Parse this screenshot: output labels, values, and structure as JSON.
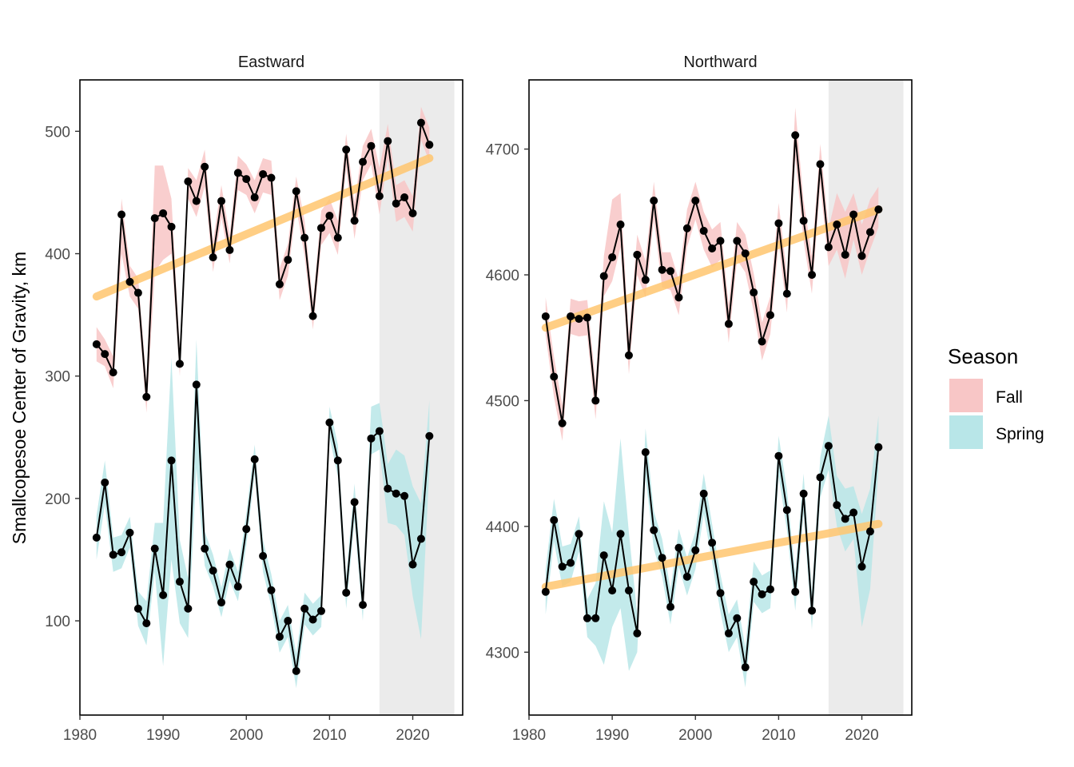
{
  "chart_data": {
    "type": "line",
    "ylabel": "Smallcopesoe Center of Gravity, km",
    "legend": {
      "title": "Season",
      "placement": "right",
      "items": [
        {
          "name": "Fall",
          "color": "#f8c6c6"
        },
        {
          "name": "Spring",
          "color": "#b8e6e8"
        }
      ]
    },
    "colors": {
      "trend": "#ffc56e",
      "shade": "#ebebeb",
      "points": "#000000"
    },
    "shaded_period": [
      2016,
      2025
    ],
    "panels": [
      {
        "title": "Eastward",
        "xlim": [
          1980,
          2026
        ],
        "ylim": [
          23,
          542
        ],
        "xticks": [
          1980,
          1990,
          2000,
          2010,
          2020
        ],
        "yticks": [
          100,
          200,
          300,
          400,
          500
        ],
        "series": [
          {
            "name": "Fall",
            "x": [
              1982,
              1983,
              1984,
              1985,
              1986,
              1987,
              1988,
              1989,
              1990,
              1991,
              1992,
              1993,
              1994,
              1995,
              1996,
              1997,
              1998,
              1999,
              2000,
              2001,
              2002,
              2003,
              2004,
              2005,
              2006,
              2007,
              2008,
              2009,
              2010,
              2011,
              2012,
              2013,
              2014,
              2015,
              2016,
              2017,
              2018,
              2019,
              2020,
              2021,
              2022
            ],
            "y": [
              326,
              318,
              303,
              432,
              377,
              368,
              283,
              429,
              433,
              422,
              310,
              459,
              443,
              471,
              397,
              443,
              403,
              466,
              461,
              446,
              465,
              462,
              375,
              395,
              451,
              413,
              349,
              421,
              431,
              413,
              485,
              427,
              475,
              488,
              447,
              492,
              441,
              446,
              433,
              507,
              489
            ],
            "lower": [
              312,
              308,
              290,
              400,
              365,
              355,
              270,
              385,
              395,
              400,
              300,
              445,
              430,
              455,
              385,
              430,
              392,
              452,
              448,
              433,
              450,
              448,
              362,
              382,
              438,
              398,
              338,
              407,
              417,
              399,
              470,
              412,
              460,
              473,
              432,
              478,
              426,
              430,
              418,
              493,
              475
            ],
            "upper": [
              340,
              330,
              316,
              445,
              390,
              380,
              296,
              472,
              472,
              445,
              322,
              470,
              460,
              485,
              410,
              456,
              415,
              480,
              473,
              460,
              478,
              476,
              388,
              408,
              463,
              427,
              360,
              435,
              445,
              427,
              498,
              442,
              488,
              502,
              470,
              506,
              456,
              460,
              447,
              520,
              503
            ],
            "trend": [
              [
                1982,
                365
              ],
              [
                2022,
                478
              ]
            ]
          },
          {
            "name": "Spring",
            "x": [
              1982,
              1983,
              1984,
              1985,
              1986,
              1987,
              1988,
              1989,
              1990,
              1991,
              1992,
              1993,
              1994,
              1995,
              1996,
              1997,
              1998,
              1999,
              2000,
              2001,
              2002,
              2003,
              2004,
              2005,
              2006,
              2007,
              2008,
              2009,
              2010,
              2011,
              2012,
              2013,
              2014,
              2015,
              2016,
              2017,
              2018,
              2019,
              2020,
              2021,
              2022
            ],
            "y": [
              168,
              213,
              154,
              156,
              172,
              110,
              98,
              159,
              121,
              231,
              132,
              110,
              293,
              159,
              141,
              115,
              146,
              128,
              175,
              232,
              153,
              125,
              87,
              100,
              59,
              110,
              101,
              108,
              262,
              231,
              123,
              197,
              113,
              249,
              255,
              208,
              204,
              202,
              146,
              167,
              251
            ],
            "lower": [
              150,
              195,
              140,
              143,
              160,
              96,
              80,
              140,
              63,
              150,
              98,
              86,
              225,
              145,
              128,
              103,
              133,
              116,
              162,
              220,
              140,
              112,
              74,
              87,
              45,
              97,
              88,
              95,
              250,
              218,
              110,
              182,
              100,
              236,
              240,
              180,
              178,
              170,
              120,
              85,
              225
            ],
            "upper": [
              186,
              231,
              168,
              170,
              185,
              124,
              116,
              180,
              180,
              315,
              166,
              135,
              330,
              173,
              154,
              127,
              159,
              140,
              188,
              244,
              166,
              138,
              100,
              113,
              73,
              123,
              114,
              121,
              275,
              244,
              136,
              212,
              126,
              275,
              278,
              228,
              240,
              235,
              210,
              196,
              280
            ],
            "trend": []
          }
        ]
      },
      {
        "title": "Northward",
        "xlim": [
          1980,
          2026
        ],
        "ylim": [
          4250,
          4755
        ],
        "xticks": [
          1980,
          1990,
          2000,
          2010,
          2020
        ],
        "yticks": [
          4300,
          4400,
          4500,
          4600,
          4700
        ],
        "series": [
          {
            "name": "Fall",
            "x": [
              1982,
              1983,
              1984,
              1985,
              1986,
              1987,
              1988,
              1989,
              1990,
              1991,
              1992,
              1993,
              1994,
              1995,
              1996,
              1997,
              1998,
              1999,
              2000,
              2001,
              2002,
              2003,
              2004,
              2005,
              2006,
              2007,
              2008,
              2009,
              2010,
              2011,
              2012,
              2013,
              2014,
              2015,
              2016,
              2017,
              2018,
              2019,
              2020,
              2021,
              2022
            ],
            "y": [
              4567,
              4519,
              4482,
              4567,
              4565,
              4566,
              4500,
              4599,
              4614,
              4640,
              4536,
              4616,
              4596,
              4659,
              4604,
              4603,
              4582,
              4637,
              4659,
              4635,
              4621,
              4627,
              4561,
              4627,
              4617,
              4586,
              4547,
              4568,
              4641,
              4585,
              4711,
              4643,
              4600,
              4688,
              4622,
              4640,
              4616,
              4648,
              4615,
              4634,
              4652
            ],
            "lower": [
              4552,
              4503,
              4468,
              4553,
              4551,
              4552,
              4485,
              4583,
              4595,
              4622,
              4521,
              4600,
              4582,
              4644,
              4590,
              4588,
              4568,
              4622,
              4644,
              4620,
              4606,
              4612,
              4546,
              4612,
              4602,
              4571,
              4532,
              4553,
              4625,
              4570,
              4693,
              4627,
              4585,
              4672,
              4607,
              4620,
              4597,
              4628,
              4600,
              4620,
              4638
            ],
            "upper": [
              4582,
              4535,
              4496,
              4581,
              4579,
              4580,
              4515,
              4615,
              4660,
              4665,
              4551,
              4632,
              4611,
              4674,
              4618,
              4618,
              4596,
              4652,
              4674,
              4650,
              4636,
              4642,
              4576,
              4642,
              4632,
              4601,
              4562,
              4583,
              4657,
              4600,
              4733,
              4659,
              4615,
              4704,
              4637,
              4665,
              4650,
              4665,
              4640,
              4660,
              4670
            ],
            "trend": [
              [
                1982,
                4558
              ],
              [
                2022,
                4652
              ]
            ]
          },
          {
            "name": "Spring",
            "x": [
              1982,
              1983,
              1984,
              1985,
              1986,
              1987,
              1988,
              1989,
              1990,
              1991,
              1992,
              1993,
              1994,
              1995,
              1996,
              1997,
              1998,
              1999,
              2000,
              2001,
              2002,
              2003,
              2004,
              2005,
              2006,
              2007,
              2008,
              2009,
              2010,
              2011,
              2012,
              2013,
              2014,
              2015,
              2016,
              2017,
              2018,
              2019,
              2020,
              2021,
              2022
            ],
            "y": [
              4348,
              4405,
              4368,
              4371,
              4394,
              4327,
              4327,
              4377,
              4349,
              4394,
              4349,
              4315,
              4459,
              4397,
              4375,
              4336,
              4383,
              4360,
              4381,
              4426,
              4387,
              4347,
              4315,
              4327,
              4288,
              4356,
              4346,
              4350,
              4456,
              4413,
              4348,
              4426,
              4333,
              4439,
              4464,
              4417,
              4406,
              4411,
              4368,
              4396,
              4463
            ],
            "lower": [
              4330,
              4388,
              4352,
              4356,
              4380,
              4312,
              4305,
              4290,
              4320,
              4335,
              4285,
              4300,
              4440,
              4382,
              4360,
              4322,
              4368,
              4345,
              4366,
              4410,
              4372,
              4332,
              4300,
              4312,
              4272,
              4340,
              4331,
              4335,
              4440,
              4397,
              4333,
              4410,
              4318,
              4423,
              4445,
              4400,
              4380,
              4390,
              4320,
              4350,
              4445
            ],
            "upper": [
              4366,
              4422,
              4384,
              4386,
              4408,
              4342,
              4355,
              4420,
              4395,
              4470,
              4395,
              4330,
              4478,
              4412,
              4390,
              4350,
              4398,
              4375,
              4396,
              4442,
              4402,
              4362,
              4330,
              4342,
              4304,
              4372,
              4361,
              4365,
              4472,
              4429,
              4363,
              4442,
              4348,
              4455,
              4488,
              4440,
              4430,
              4432,
              4410,
              4430,
              4488
            ],
            "trend": [
              [
                1982,
                4352
              ],
              [
                2022,
                4402
              ]
            ]
          }
        ]
      }
    ]
  }
}
